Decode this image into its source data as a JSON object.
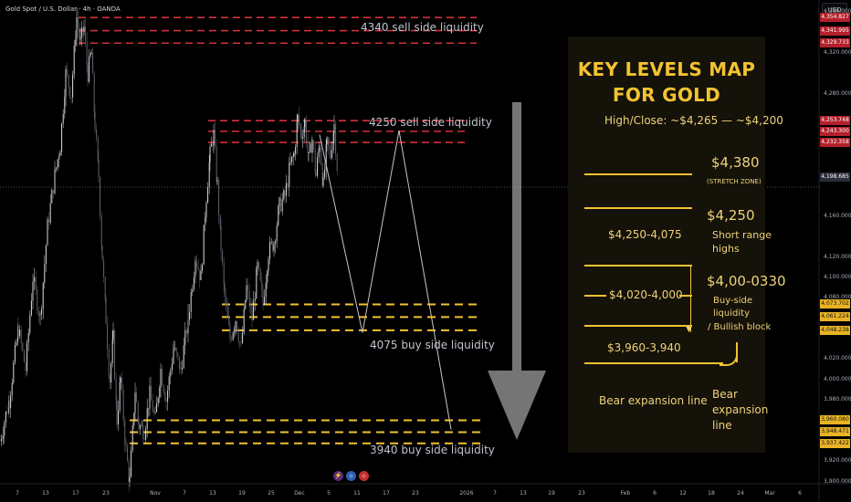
{
  "header": {
    "symbol": "Gold Spot / U.S. Dollar · 4h · OANDA",
    "currency": "USD"
  },
  "chart_data": {
    "type": "candlestick",
    "ylim": [
      3880,
      4372
    ],
    "y_ticks": [
      "4,360.000",
      "4,320.000",
      "4,280.000",
      "4,160.000",
      "4,120.000",
      "4,100.000",
      "4,080.000",
      "4,020.000",
      "4,000.000",
      "3,980.000",
      "3,920.000",
      "3,900.000"
    ],
    "y_tick_values": [
      4360,
      4320,
      4280,
      4160,
      4120,
      4100,
      4080,
      4020,
      4000,
      3980,
      3920,
      3900
    ],
    "x_ticks": [
      "7",
      "13",
      "17",
      "23",
      "Nov",
      "7",
      "13",
      "19",
      "25",
      "Dec",
      "5",
      "11",
      "17",
      "23",
      "2026",
      "7",
      "13",
      "19",
      "23",
      "Feb",
      "6",
      "12",
      "18",
      "24",
      "Mar",
      "6"
    ],
    "price_series": [
      [
        0,
        3940
      ],
      [
        10,
        3980
      ],
      [
        20,
        4050
      ],
      [
        28,
        4010
      ],
      [
        36,
        4100
      ],
      [
        44,
        4060
      ],
      [
        52,
        4150
      ],
      [
        60,
        4200
      ],
      [
        66,
        4230
      ],
      [
        72,
        4300
      ],
      [
        78,
        4280
      ],
      [
        84,
        4355
      ],
      [
        88,
        4330
      ],
      [
        92,
        4345
      ],
      [
        96,
        4300
      ],
      [
        100,
        4320
      ],
      [
        104,
        4250
      ],
      [
        108,
        4200
      ],
      [
        112,
        4120
      ],
      [
        116,
        4060
      ],
      [
        120,
        4000
      ],
      [
        124,
        4040
      ],
      [
        128,
        3960
      ],
      [
        132,
        4000
      ],
      [
        138,
        3930
      ],
      [
        142,
        3900
      ],
      [
        148,
        3990
      ],
      [
        152,
        3955
      ],
      [
        158,
        3950
      ],
      [
        164,
        3985
      ],
      [
        170,
        3960
      ],
      [
        176,
        4010
      ],
      [
        182,
        3980
      ],
      [
        190,
        4030
      ],
      [
        198,
        4010
      ],
      [
        206,
        4060
      ],
      [
        214,
        4120
      ],
      [
        220,
        4100
      ],
      [
        226,
        4180
      ],
      [
        230,
        4220
      ],
      [
        234,
        4240
      ],
      [
        238,
        4190
      ],
      [
        242,
        4130
      ],
      [
        246,
        4080
      ],
      [
        252,
        4040
      ],
      [
        258,
        4060
      ],
      [
        264,
        4030
      ],
      [
        270,
        4090
      ],
      [
        276,
        4060
      ],
      [
        282,
        4110
      ],
      [
        288,
        4075
      ],
      [
        294,
        4125
      ],
      [
        300,
        4135
      ],
      [
        306,
        4170
      ],
      [
        312,
        4180
      ],
      [
        318,
        4210
      ],
      [
        322,
        4220
      ],
      [
        326,
        4256
      ],
      [
        330,
        4240
      ],
      [
        334,
        4252
      ],
      [
        338,
        4215
      ],
      [
        342,
        4235
      ],
      [
        346,
        4200
      ],
      [
        350,
        4232
      ],
      [
        354,
        4190
      ],
      [
        358,
        4230
      ],
      [
        362,
        4220
      ],
      [
        366,
        4250
      ],
      [
        370,
        4199
      ]
    ],
    "projection": [
      [
        350,
        4240
      ],
      [
        397,
        4046
      ],
      [
        437,
        4244
      ],
      [
        494,
        3951
      ]
    ],
    "levels": [
      {
        "label": "4340 sell side liquidity",
        "prices": [
          4354.827,
          4341.995,
          4329.733
        ],
        "color": "#d1313a",
        "values": [
          "4,354.827",
          "4,341.995",
          "4,329.733"
        ]
      },
      {
        "label": "4250 sell side liquidity",
        "prices": [
          4253.748,
          4243.3,
          4232.358
        ],
        "color": "#d1313a",
        "values": [
          "4,253.748",
          "4,243.300",
          "4,232.358"
        ]
      },
      {
        "label": "4075 buy side liquidity",
        "prices": [
          4073.702,
          4061.224,
          4048.238
        ],
        "color": "#f2c230",
        "values": [
          "4,073.702",
          "4,061.224",
          "4,048.238"
        ]
      },
      {
        "label": "3940 buy side liquidity",
        "prices": [
          3960.08,
          3948.471,
          3937.422
        ],
        "color": "#f2c230",
        "values": [
          "3,960.080",
          "3,948.471",
          "3,937.422"
        ]
      }
    ],
    "current_price": {
      "value": 4198.685,
      "label": "4,198.685"
    }
  },
  "card": {
    "title_line1": "KEY LEVELS MAP",
    "title_line2": "FOR GOLD",
    "subtitle": "High/Close: ~$4,265 — ~$4,200",
    "level1_price": "$4,380",
    "level1_note": "(STRETCH ZONE)",
    "level2_price": "$4,250",
    "range1": "$4,250-4,075",
    "range1_note1": "Short range",
    "range1_note2": "highs",
    "level3_price": "$4,00-0330",
    "range2": "$4,020-4,000",
    "range2_note1": "Buy-side",
    "range2_note2": "liquidity",
    "range2_note3": "/ Bullish block",
    "range3": "$3,960-3,940",
    "bear_left": "Bear expansion line",
    "bear_right1": "Bear",
    "bear_right2": "expansion",
    "bear_right3": "line"
  },
  "colors": {
    "sell": "#d1313a",
    "buy": "#f2c230",
    "accent": "#f2c230",
    "card_bg": "#141209"
  }
}
